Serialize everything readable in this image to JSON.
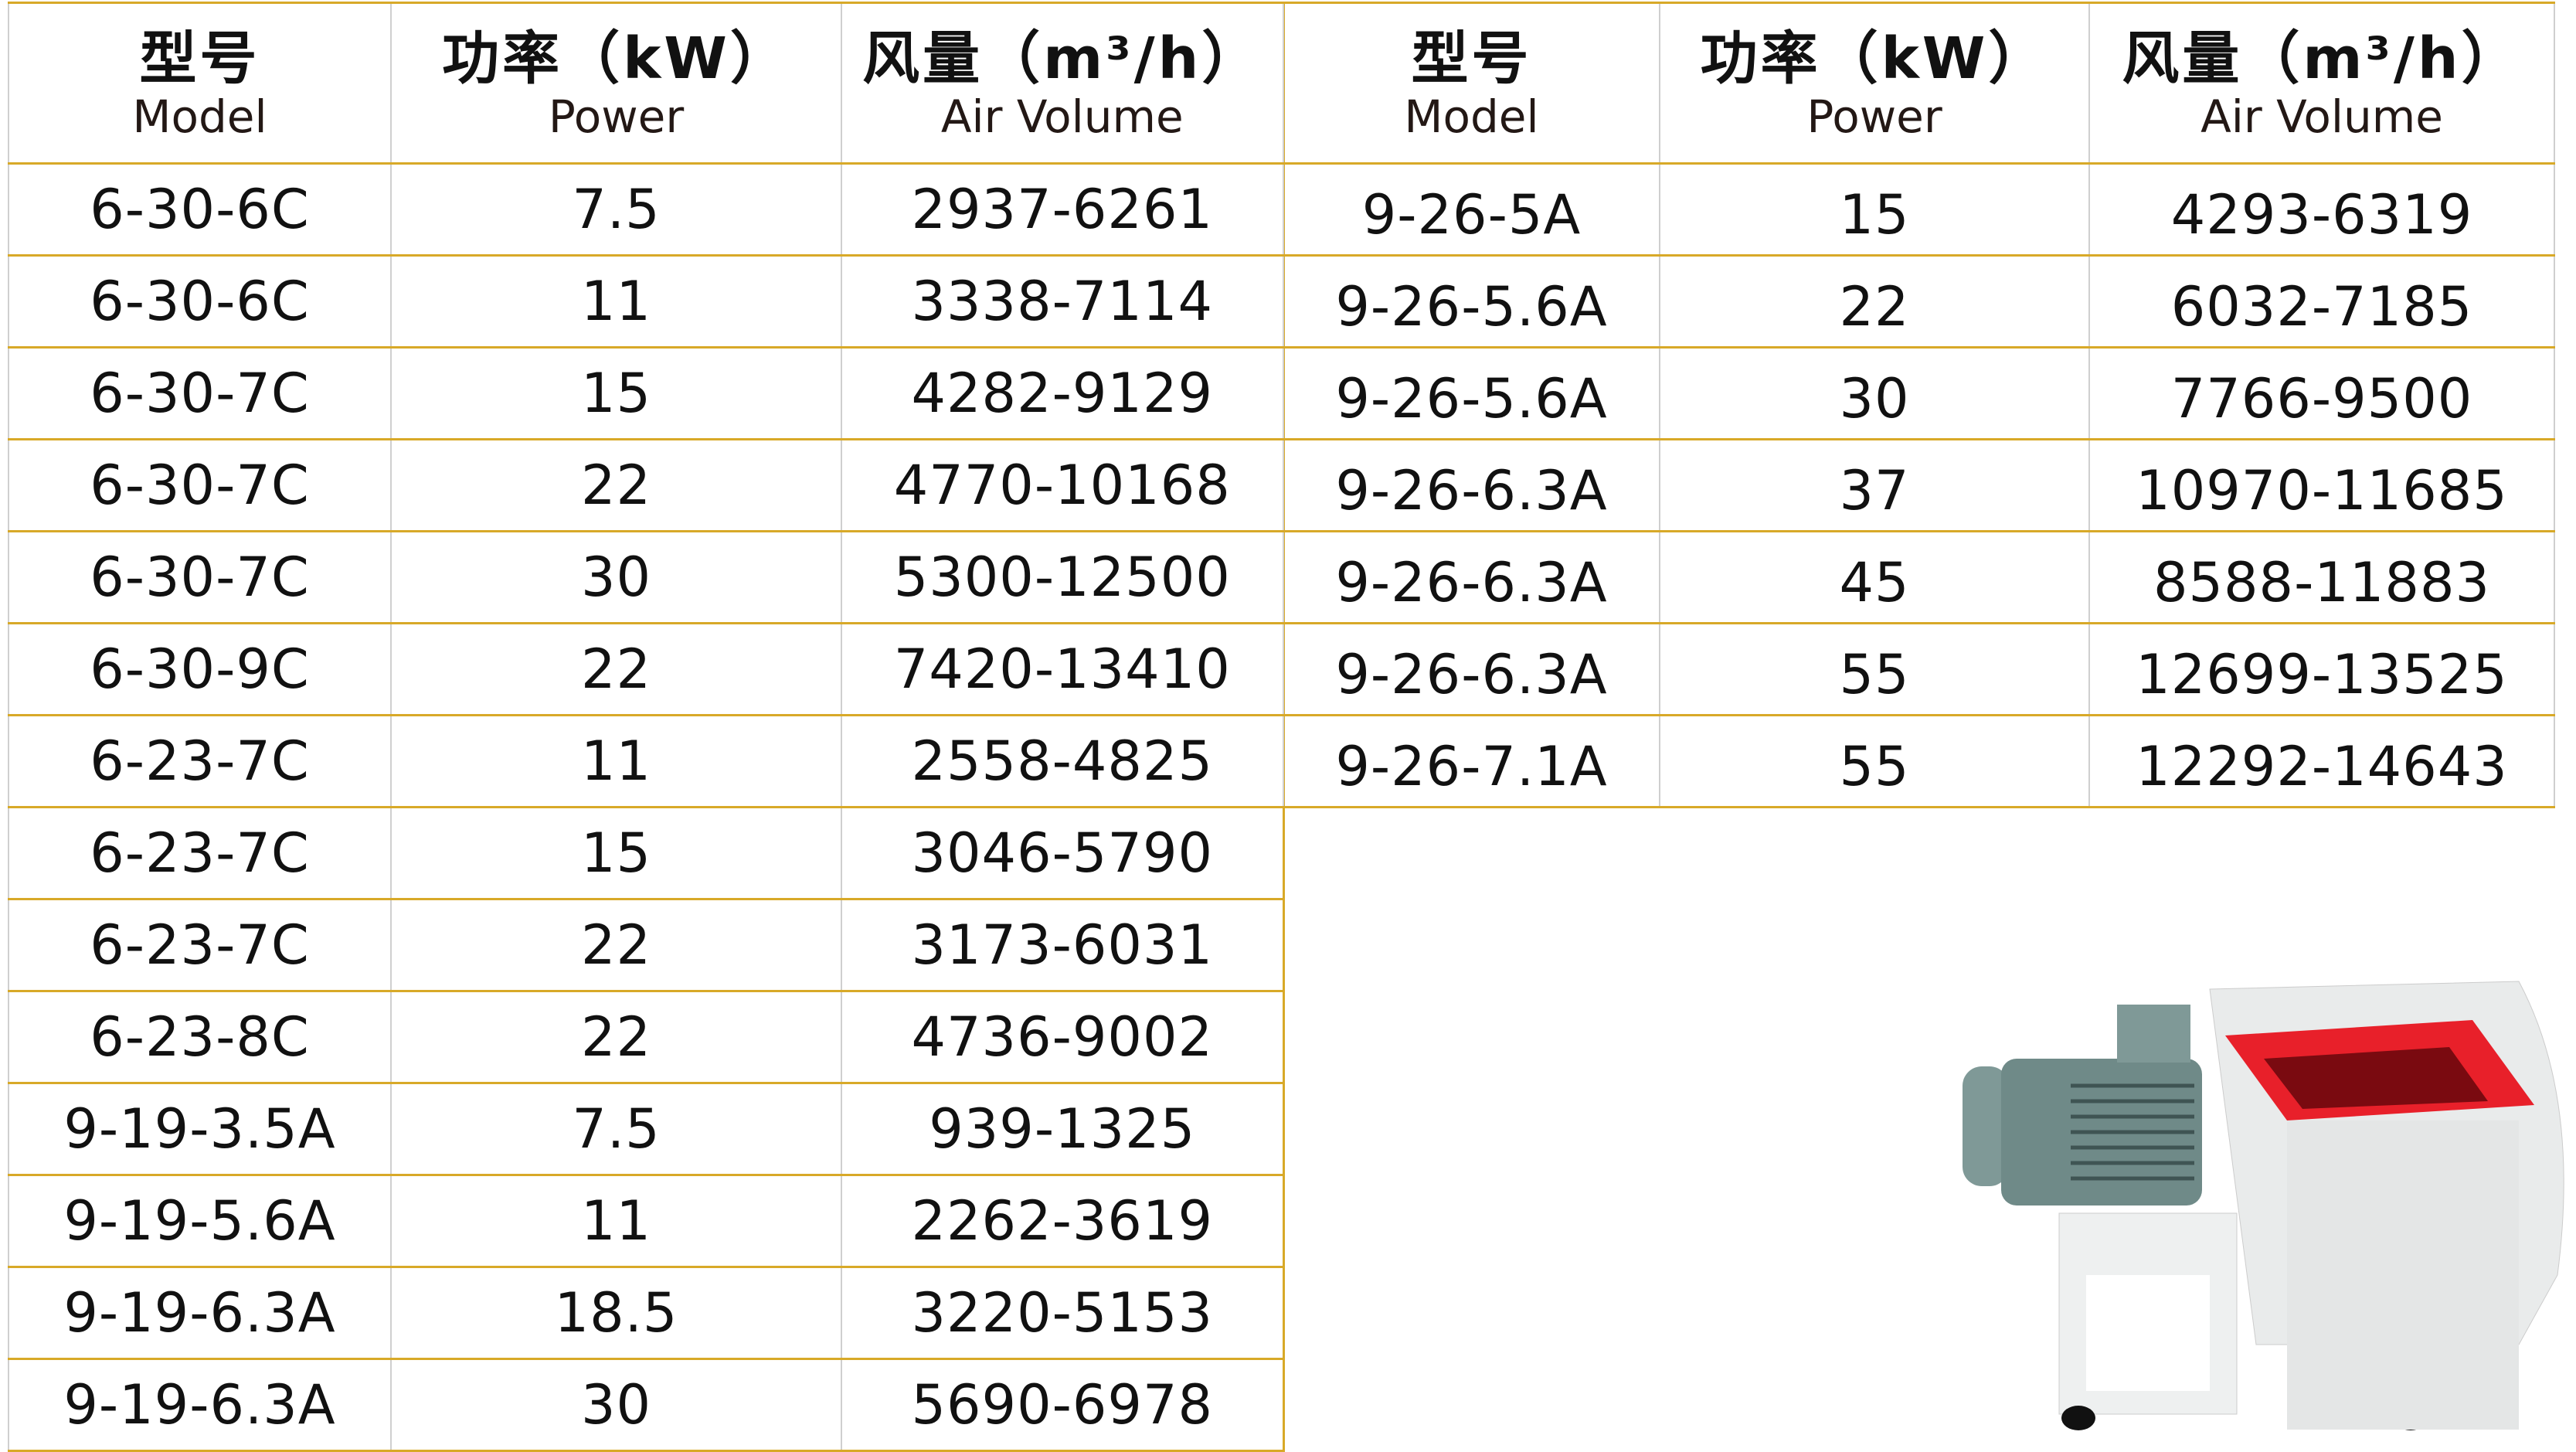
{
  "headers": {
    "model_zh": "型号",
    "model_en": "Model",
    "power_zh": "功率（kW）",
    "power_en": "Power",
    "air_zh": "风量（m³/h）",
    "air_en": "Air Volume"
  },
  "left_rows": [
    {
      "model": "6-30-6C",
      "power": "7.5",
      "air": "2937-6261"
    },
    {
      "model": "6-30-6C",
      "power": "11",
      "air": "3338-7114"
    },
    {
      "model": "6-30-7C",
      "power": "15",
      "air": "4282-9129"
    },
    {
      "model": "6-30-7C",
      "power": "22",
      "air": "4770-10168"
    },
    {
      "model": "6-30-7C",
      "power": "30",
      "air": "5300-12500"
    },
    {
      "model": "6-30-9C",
      "power": "22",
      "air": "7420-13410"
    },
    {
      "model": "6-23-7C",
      "power": "11",
      "air": "2558-4825"
    },
    {
      "model": "6-23-7C",
      "power": "15",
      "air": "3046-5790"
    },
    {
      "model": "6-23-7C",
      "power": "22",
      "air": "3173-6031"
    },
    {
      "model": "6-23-8C",
      "power": "22",
      "air": "4736-9002"
    },
    {
      "model": "9-19-3.5A",
      "power": "7.5",
      "air": "939-1325"
    },
    {
      "model": "9-19-5.6A",
      "power": "11",
      "air": "2262-3619"
    },
    {
      "model": "9-19-6.3A",
      "power": "18.5",
      "air": "3220-5153"
    },
    {
      "model": "9-19-6.3A",
      "power": "30",
      "air": "5690-6978"
    }
  ],
  "right_rows": [
    {
      "model": "9-26-5A",
      "power": "15",
      "air": "4293-6319"
    },
    {
      "model": "9-26-5.6A",
      "power": "22",
      "air": "6032-7185"
    },
    {
      "model": "9-26-5.6A",
      "power": "30",
      "air": "7766-9500"
    },
    {
      "model": "9-26-6.3A",
      "power": "37",
      "air": "10970-11685"
    },
    {
      "model": "9-26-6.3A",
      "power": "45",
      "air": "8588-11883"
    },
    {
      "model": "9-26-6.3A",
      "power": "55",
      "air": "12699-13525"
    },
    {
      "model": "9-26-7.1A",
      "power": "55",
      "air": "12292-14643"
    }
  ],
  "colors": {
    "grid": "#d8a928",
    "fan_inlet": "#e8202a",
    "motor": "#6f8a88"
  }
}
